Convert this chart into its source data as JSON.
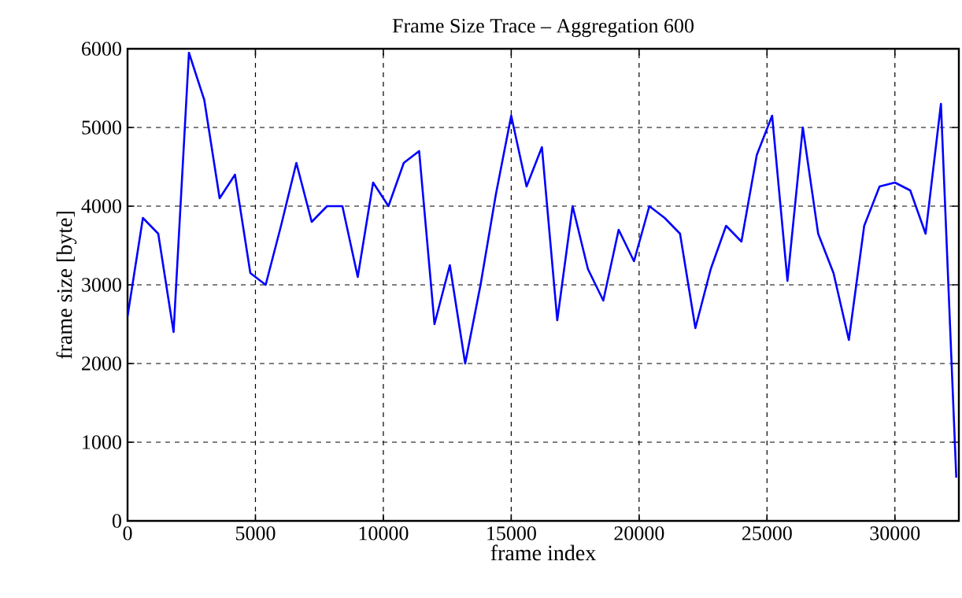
{
  "chart_data": {
    "type": "line",
    "title": "Frame Size Trace – Aggregation 600",
    "xlabel": "frame index",
    "ylabel": "frame size [byte]",
    "x": [
      0,
      600,
      1200,
      1800,
      2400,
      3000,
      3600,
      4200,
      4800,
      5400,
      6000,
      6600,
      7200,
      7800,
      8400,
      9000,
      9600,
      10200,
      10800,
      11400,
      12000,
      12600,
      13200,
      13800,
      14400,
      15000,
      15600,
      16200,
      16800,
      17400,
      18000,
      18600,
      19200,
      19800,
      20400,
      21000,
      21600,
      22200,
      22800,
      23400,
      24000,
      24600,
      25200,
      25800,
      26400,
      27000,
      27600,
      28200,
      28800,
      29400,
      30000,
      30600,
      31200,
      31800,
      32400
    ],
    "series": [
      {
        "color": "#0000ff",
        "values": [
          2600,
          3850,
          3650,
          2400,
          5950,
          5350,
          4100,
          4400,
          3150,
          3000,
          3750,
          4550,
          3800,
          4000,
          4000,
          3100,
          4300,
          4000,
          4550,
          4700,
          2500,
          3250,
          2000,
          3000,
          4150,
          5150,
          4250,
          4750,
          2550,
          4000,
          3200,
          2800,
          3700,
          3300,
          4000,
          3850,
          3650,
          2450,
          3200,
          3750,
          3550,
          4650,
          5150,
          3050,
          5000,
          3650,
          3150,
          2300,
          3750,
          4250,
          4300,
          4200,
          3650,
          5300,
          550
        ]
      }
    ],
    "xlim": [
      0,
      32500
    ],
    "ylim": [
      0,
      6000
    ],
    "xticks": [
      0,
      5000,
      10000,
      15000,
      20000,
      25000,
      30000
    ],
    "yticks": [
      0,
      1000,
      2000,
      3000,
      4000,
      5000,
      6000
    ],
    "grid": true,
    "legend": false,
    "marker": "none",
    "line_style": "solid"
  }
}
